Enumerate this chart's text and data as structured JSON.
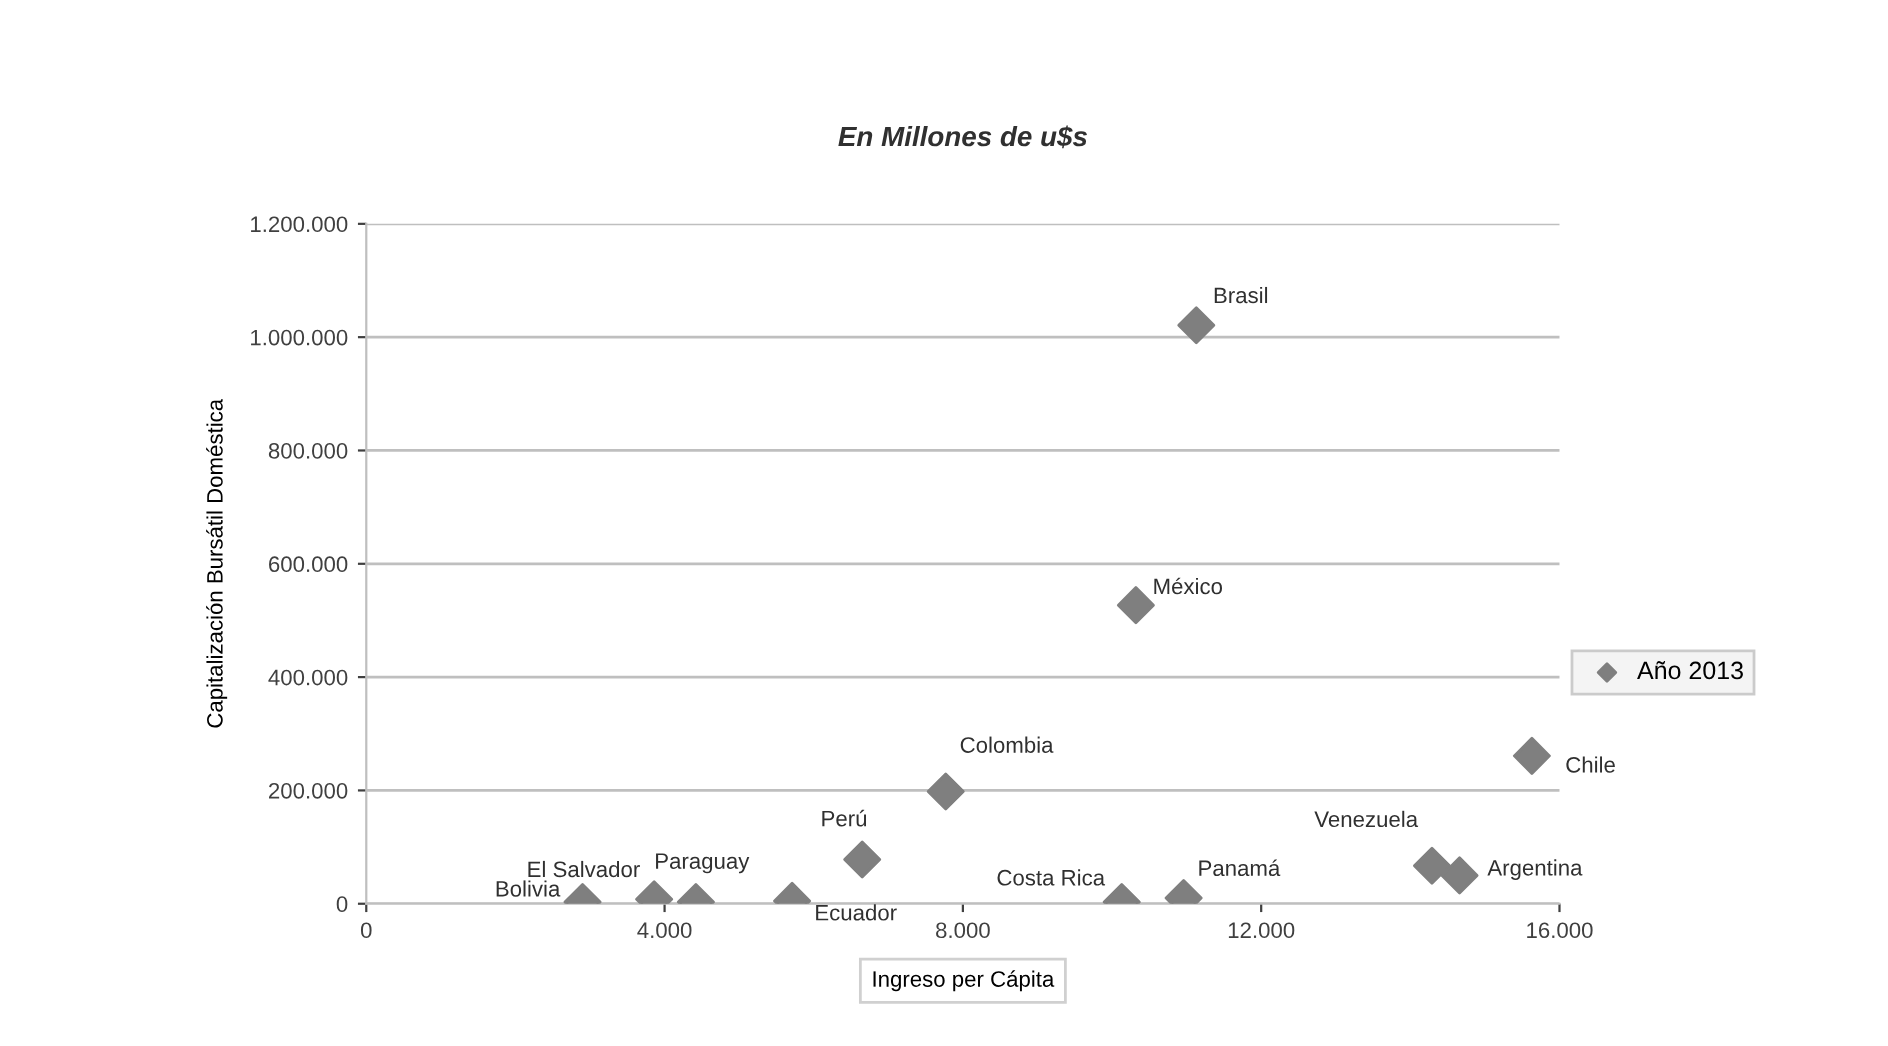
{
  "chart_data": {
    "type": "scatter",
    "title": "En Millones de u$s",
    "xlabel": "Ingreso per Cápita",
    "ylabel": "Capitalización Bursátil Doméstica",
    "series": [
      {
        "name": "Año 2013",
        "color": "#7f7f7f",
        "x": [
          2900,
          3860,
          4420,
          5710,
          6650,
          7770,
          10130,
          10960,
          14290,
          14660,
          15630,
          10320,
          11130
        ],
        "values": [
          3000,
          8000,
          3000,
          5000,
          78000,
          198000,
          3000,
          10000,
          67000,
          50000,
          261000,
          527000,
          1021000
        ]
      }
    ],
    "annotations": [
      {
        "text": "Bolivia",
        "x": 2900,
        "y": 3000
      },
      {
        "text": "El Salvador",
        "x": 3860,
        "y": 8000
      },
      {
        "text": "Paraguay",
        "x": 4420,
        "y": 3000
      },
      {
        "text": "Ecuador",
        "x": 5710,
        "y": 5000
      },
      {
        "text": "Perú",
        "x": 6650,
        "y": 78000
      },
      {
        "text": "Colombia",
        "x": 7770,
        "y": 198000
      },
      {
        "text": "Costa Rica",
        "x": 10130,
        "y": 3000
      },
      {
        "text": "Panamá",
        "x": 10960,
        "y": 10000
      },
      {
        "text": "Venezuela",
        "x": 14290,
        "y": 67000
      },
      {
        "text": "Argentina",
        "x": 14660,
        "y": 50000
      },
      {
        "text": "Chile",
        "x": 15630,
        "y": 261000
      },
      {
        "text": "México",
        "x": 10320,
        "y": 527000
      },
      {
        "text": "Brasil",
        "x": 11130,
        "y": 1021000
      }
    ],
    "xlim": [
      0,
      16000
    ],
    "xticks": [
      0,
      {
        "value": 4000,
        "label": "4.000"
      },
      {
        "value": 8000,
        "label": "8.000"
      },
      {
        "value": 12000,
        "label": "12.000"
      },
      {
        "value": 16000,
        "label": "16.000"
      }
    ],
    "ylim": [
      0,
      1200000
    ],
    "yticks": [
      0,
      {
        "value": 200000,
        "label": "200.000"
      },
      {
        "value": 400000,
        "label": "400.000"
      },
      {
        "value": 600000,
        "label": "600.000"
      },
      {
        "value": 800000,
        "label": "800.000"
      },
      {
        "value": 1000000,
        "label": "1.000.000"
      },
      {
        "value": 1200000,
        "label": "1.200.000"
      }
    ],
    "grid": "y",
    "legend": "right",
    "marker": "diamond"
  }
}
